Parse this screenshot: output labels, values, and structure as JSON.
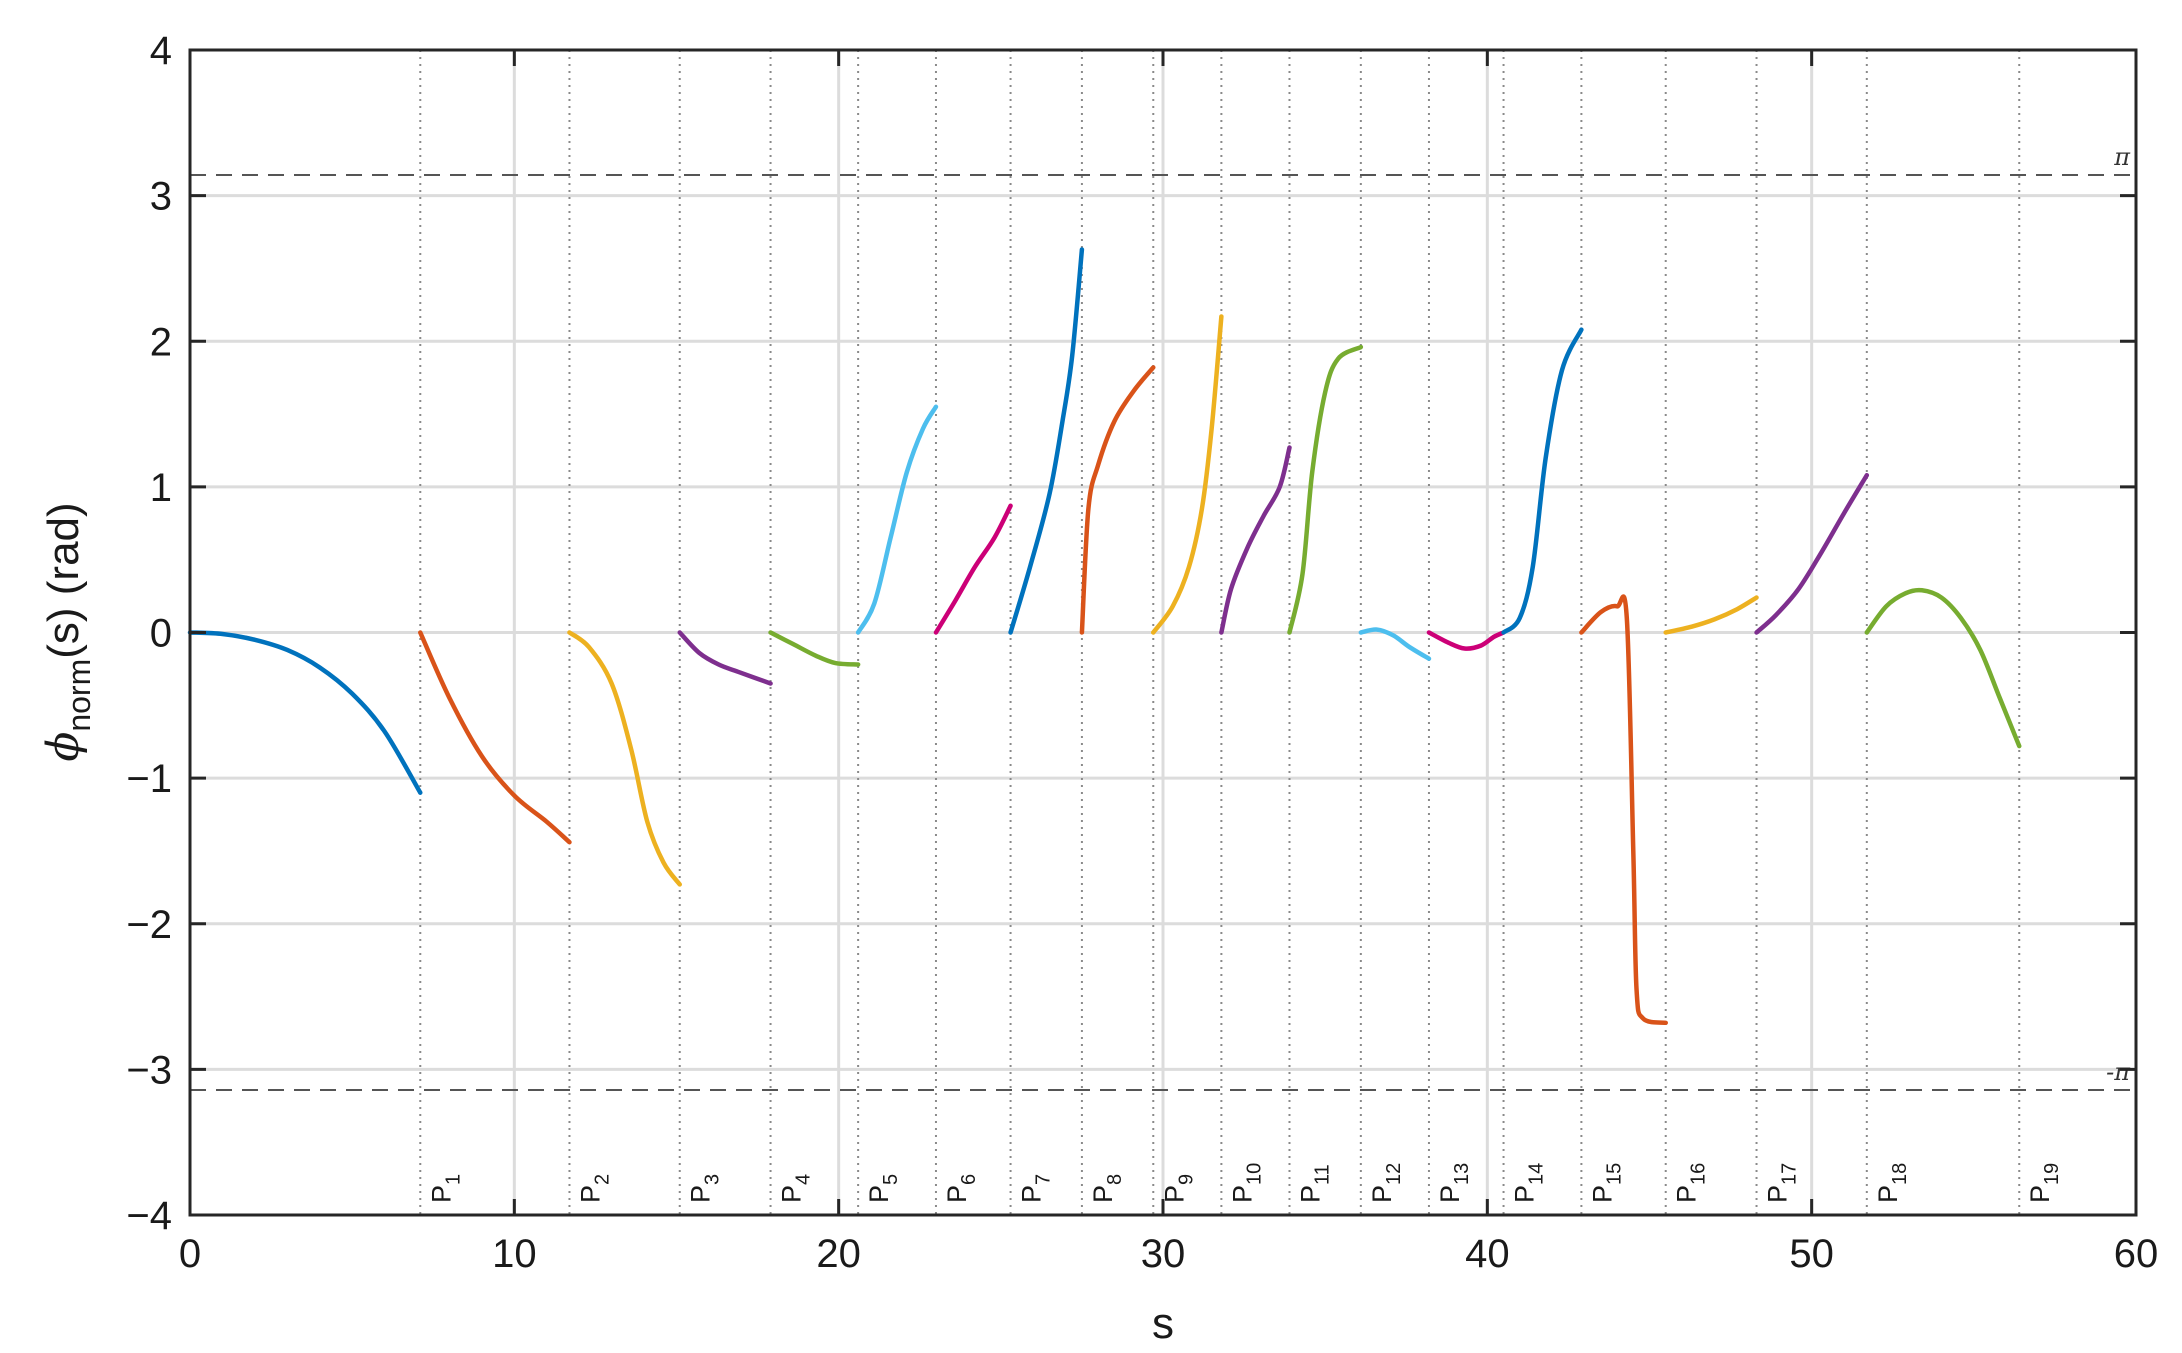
{
  "chart_data": {
    "type": "line",
    "xlabel": "s",
    "ylabel": {
      "symbol": "ϕ",
      "subscript": "norm",
      "suffix": "(s) (rad)"
    },
    "xlim": [
      0,
      60
    ],
    "ylim": [
      -4,
      4
    ],
    "xticks": [
      0,
      10,
      20,
      30,
      40,
      50,
      60
    ],
    "yticks": [
      -4,
      -3,
      -2,
      -1,
      0,
      1,
      2,
      3,
      4
    ],
    "xtick_labels": [
      "0",
      "10",
      "20",
      "30",
      "40",
      "50",
      "60"
    ],
    "ytick_labels": [
      "−4",
      "−3",
      "−2",
      "−1",
      "0",
      "1",
      "2",
      "3",
      "4"
    ],
    "grid": true,
    "reference_lines": [
      {
        "y": 3.14159,
        "label": "π",
        "style": "dashed"
      },
      {
        "y": -3.14159,
        "label": "-π",
        "style": "dashed"
      }
    ],
    "markers": [
      {
        "x": 7.1,
        "label": "P",
        "sub": "1"
      },
      {
        "x": 11.7,
        "label": "P",
        "sub": "2"
      },
      {
        "x": 15.1,
        "label": "P",
        "sub": "3"
      },
      {
        "x": 17.9,
        "label": "P",
        "sub": "4"
      },
      {
        "x": 20.6,
        "label": "P",
        "sub": "5"
      },
      {
        "x": 23.0,
        "label": "P",
        "sub": "6"
      },
      {
        "x": 25.3,
        "label": "P",
        "sub": "7"
      },
      {
        "x": 27.5,
        "label": "P",
        "sub": "8"
      },
      {
        "x": 29.7,
        "label": "P",
        "sub": "9"
      },
      {
        "x": 31.8,
        "label": "P",
        "sub": "10"
      },
      {
        "x": 33.9,
        "label": "P",
        "sub": "11"
      },
      {
        "x": 36.1,
        "label": "P",
        "sub": "12"
      },
      {
        "x": 38.2,
        "label": "P",
        "sub": "13"
      },
      {
        "x": 40.5,
        "label": "P",
        "sub": "14"
      },
      {
        "x": 42.9,
        "label": "P",
        "sub": "15"
      },
      {
        "x": 45.5,
        "label": "P",
        "sub": "16"
      },
      {
        "x": 48.3,
        "label": "P",
        "sub": "17"
      },
      {
        "x": 51.7,
        "label": "P",
        "sub": "18"
      },
      {
        "x": 56.4,
        "label": "P",
        "sub": "19"
      }
    ],
    "series": [
      {
        "color": "#0072BD",
        "x": [
          0,
          1,
          2,
          3,
          4,
          5,
          6,
          7.1
        ],
        "y": [
          0,
          -0.01,
          -0.05,
          -0.12,
          -0.24,
          -0.42,
          -0.68,
          -1.1
        ]
      },
      {
        "color": "#D95319",
        "x": [
          7.1,
          8,
          9,
          10,
          11,
          11.7
        ],
        "y": [
          0,
          -0.45,
          -0.85,
          -1.12,
          -1.3,
          -1.44
        ]
      },
      {
        "color": "#EDB120",
        "x": [
          11.7,
          12.3,
          13,
          13.6,
          14.1,
          14.6,
          15.1
        ],
        "y": [
          0,
          -0.1,
          -0.35,
          -0.8,
          -1.3,
          -1.58,
          -1.73
        ]
      },
      {
        "color": "#7E2F8E",
        "x": [
          15.1,
          15.7,
          16.3,
          16.9,
          17.9
        ],
        "y": [
          0,
          -0.14,
          -0.22,
          -0.27,
          -0.35
        ]
      },
      {
        "color": "#77AC30",
        "x": [
          17.9,
          18.6,
          19.3,
          19.9,
          20.6
        ],
        "y": [
          0,
          -0.08,
          -0.16,
          -0.21,
          -0.22
        ]
      },
      {
        "color": "#4DBEEE",
        "x": [
          20.6,
          21.1,
          21.6,
          22.1,
          22.6,
          23.0
        ],
        "y": [
          0,
          0.2,
          0.65,
          1.1,
          1.4,
          1.55
        ]
      },
      {
        "color": "#CC0077",
        "x": [
          23.0,
          23.6,
          24.2,
          24.8,
          25.3
        ],
        "y": [
          0,
          0.22,
          0.45,
          0.65,
          0.87
        ]
      },
      {
        "color": "#0072BD",
        "x": [
          25.3,
          25.9,
          26.5,
          26.9,
          27.2,
          27.5
        ],
        "y": [
          0,
          0.45,
          0.95,
          1.45,
          1.9,
          2.63
        ]
      },
      {
        "color": "#D95319",
        "x": [
          27.5,
          27.7,
          28.0,
          28.5,
          29.1,
          29.7
        ],
        "y": [
          0,
          0.85,
          1.15,
          1.45,
          1.66,
          1.82
        ]
      },
      {
        "color": "#EDB120",
        "x": [
          29.7,
          30.3,
          30.8,
          31.2,
          31.5,
          31.8
        ],
        "y": [
          0,
          0.18,
          0.45,
          0.85,
          1.4,
          2.17
        ]
      },
      {
        "color": "#7E2F8E",
        "x": [
          31.8,
          32.1,
          32.6,
          33.1,
          33.6,
          33.9
        ],
        "y": [
          0,
          0.3,
          0.58,
          0.8,
          1.0,
          1.27
        ]
      },
      {
        "color": "#77AC30",
        "x": [
          33.9,
          34.3,
          34.6,
          35.0,
          35.4,
          36.1
        ],
        "y": [
          0,
          0.4,
          1.1,
          1.65,
          1.88,
          1.96
        ]
      },
      {
        "color": "#4DBEEE",
        "x": [
          36.1,
          36.6,
          37.1,
          37.6,
          38.2
        ],
        "y": [
          0,
          0.02,
          -0.02,
          -0.1,
          -0.18
        ]
      },
      {
        "color": "#CC0077",
        "x": [
          38.2,
          38.8,
          39.3,
          39.8,
          40.2,
          40.5
        ],
        "y": [
          0,
          -0.07,
          -0.11,
          -0.09,
          -0.03,
          0
        ]
      },
      {
        "color": "#0072BD",
        "x": [
          40.5,
          41.0,
          41.4,
          41.8,
          42.3,
          42.9
        ],
        "y": [
          0,
          0.1,
          0.45,
          1.2,
          1.8,
          2.08
        ]
      },
      {
        "color": "#D95319",
        "x": [
          42.9,
          43.5,
          44.0,
          44.3,
          44.5,
          44.6,
          44.8,
          45.5
        ],
        "y": [
          0,
          0.14,
          0.18,
          0.1,
          -1.5,
          -2.45,
          -2.65,
          -2.68
        ]
      },
      {
        "color": "#EDB120",
        "x": [
          45.5,
          46.3,
          47.0,
          47.7,
          48.3
        ],
        "y": [
          0,
          0.04,
          0.09,
          0.16,
          0.24
        ]
      },
      {
        "color": "#7E2F8E",
        "x": [
          48.3,
          48.9,
          49.6,
          50.3,
          51.0,
          51.7
        ],
        "y": [
          0,
          0.12,
          0.3,
          0.55,
          0.82,
          1.08
        ]
      },
      {
        "color": "#77AC30",
        "x": [
          51.7,
          52.3,
          52.9,
          53.4,
          54.0,
          54.6,
          55.2,
          55.8,
          56.4
        ],
        "y": [
          0,
          0.18,
          0.27,
          0.29,
          0.24,
          0.1,
          -0.12,
          -0.45,
          -0.78
        ]
      }
    ]
  }
}
